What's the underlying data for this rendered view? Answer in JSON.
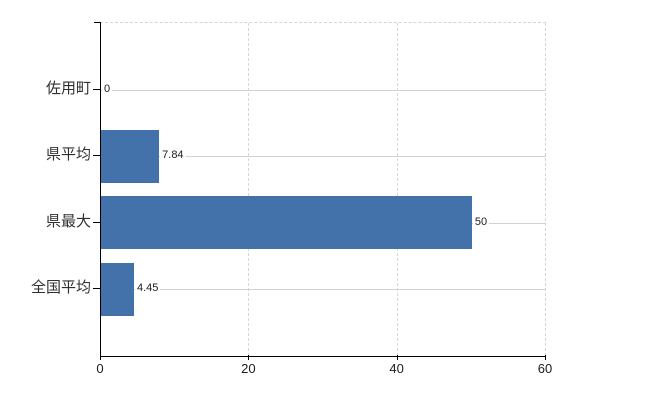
{
  "chart_data": {
    "type": "bar",
    "orientation": "horizontal",
    "title": "",
    "xlabel": "",
    "ylabel": "",
    "categories": [
      "佐用町",
      "県平均",
      "県最大",
      "全国平均"
    ],
    "values": [
      0,
      7.84,
      50,
      4.45
    ],
    "value_labels": [
      "0",
      "7.84",
      "50",
      "4.45"
    ],
    "x_ticks": [
      0,
      20,
      40,
      60
    ],
    "x_tick_labels": [
      "0",
      "20",
      "40",
      "60"
    ],
    "xlim": [
      0,
      60
    ],
    "grid": "vertical-dashed-and-row-lines",
    "legend": "none",
    "bar_color": "#4372aa",
    "vgrid_color": "#d6d6d6",
    "rowline_color": "#cdd5cd",
    "axis_color": "#000000",
    "category_label_color": "#303030",
    "value_label_color": "#1c1c1c"
  }
}
